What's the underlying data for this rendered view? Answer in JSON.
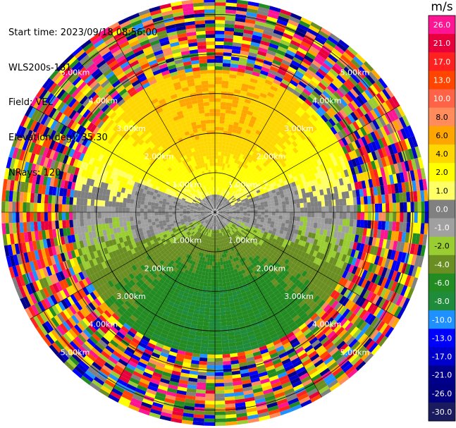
{
  "header": {
    "start_time": "Start time: 2023/09/18 08:56:00",
    "instrument": "WLS200s-181",
    "field": "Field: VEL",
    "elevation": "Elevation(deg): 35.30",
    "nrays": "NRays: 120"
  },
  "colorbar": {
    "unit": "m/s",
    "ticks": [
      "26.0",
      "21.0",
      "17.0",
      "13.0",
      "10.0",
      "8.0",
      "6.0",
      "4.0",
      "2.0",
      "1.0",
      "0.0",
      "-1.0",
      "-2.0",
      "-4.0",
      "-6.0",
      "-8.0",
      "-10.0",
      "-13.0",
      "-17.0",
      "-21.0",
      "-26.0",
      "-30.0"
    ],
    "colors": [
      "#ff1493",
      "#e8003c",
      "#ff2020",
      "#ff4500",
      "#ff6347",
      "#ff8c5a",
      "#ffa500",
      "#ffd700",
      "#ffff00",
      "#ffff66",
      "#808080",
      "#a0a0a0",
      "#9acd32",
      "#6b8e23",
      "#228b22",
      "#1e8c3a",
      "#1e90ff",
      "#0000ff",
      "#0000cd",
      "#00008b",
      "#000080",
      "#1a1a5e"
    ]
  },
  "chart_data": {
    "type": "ppi",
    "field": "VEL",
    "units": "m/s",
    "nrays": 120,
    "elevation_deg": 35.3,
    "range_rings_km": [
      1.0,
      2.0,
      3.0,
      4.0,
      5.0
    ],
    "ring_labels": [
      "1.00km",
      "2.00km",
      "3.00km",
      "4.00km",
      "5.00km"
    ],
    "spokes_deg": [
      0,
      30,
      60,
      90,
      120,
      150,
      180,
      210,
      240,
      270,
      300,
      330
    ],
    "max_range_km": 5.4,
    "velocity_pattern": [
      {
        "region": "north",
        "range_km": [
          0.5,
          3.5
        ],
        "velocity_ms": [
          2.0,
          6.0
        ]
      },
      {
        "region": "south",
        "range_km": [
          0.5,
          3.5
        ],
        "velocity_ms": [
          -6.0,
          -2.0
        ]
      },
      {
        "region": "east-west",
        "range_km": [
          0.3,
          2.0
        ],
        "velocity_ms": [
          -1.0,
          1.0
        ]
      },
      {
        "region": "outer",
        "range_km": [
          3.5,
          5.4
        ],
        "velocity_ms": "noise"
      }
    ]
  }
}
